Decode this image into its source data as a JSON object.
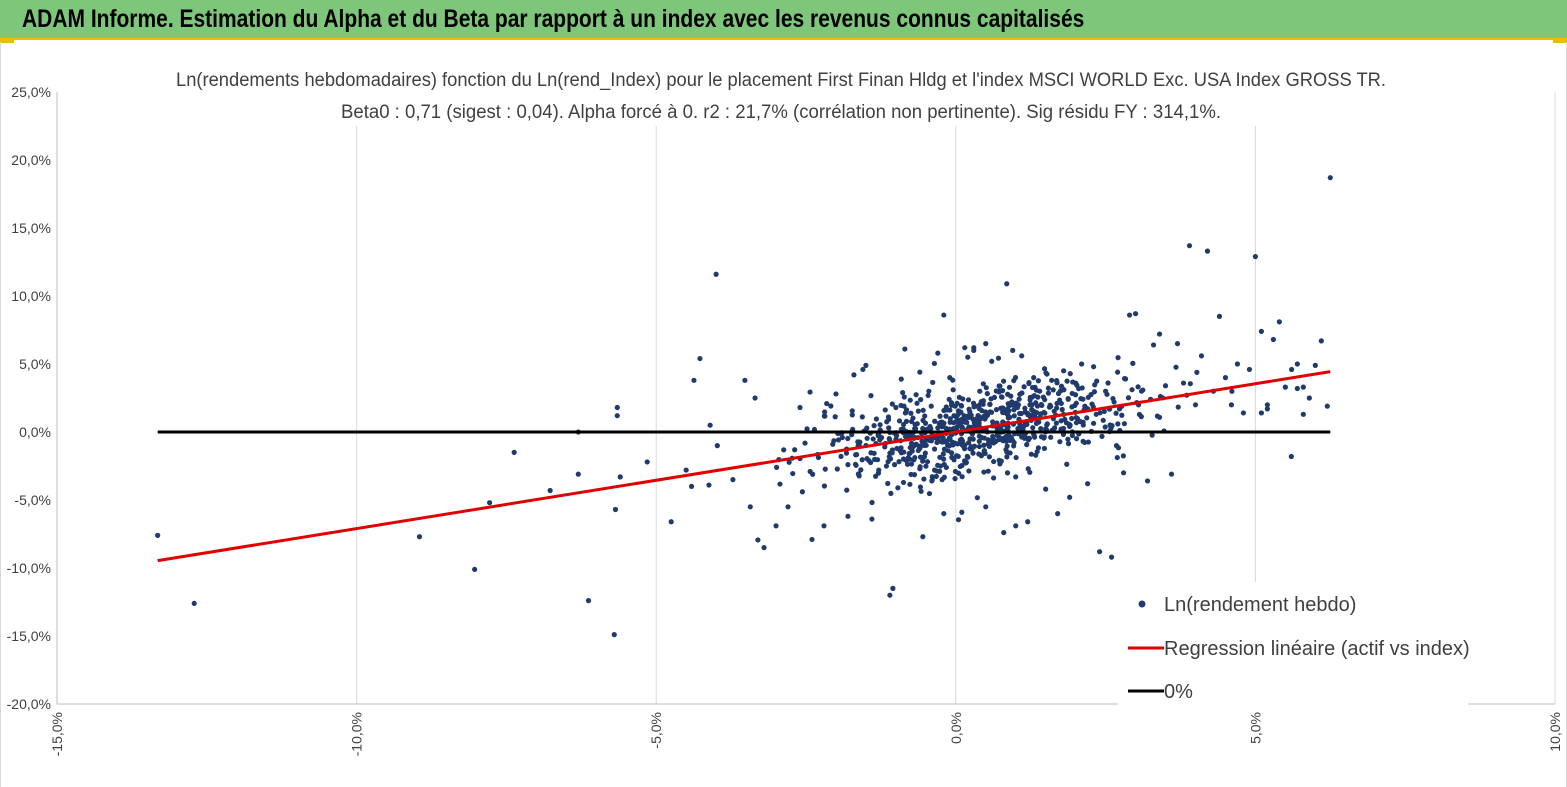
{
  "banner": {
    "title": "ADAM Informe. Estimation du Alpha et du Beta par rapport à un index avec les revenus connus capitalisés"
  },
  "colors": {
    "banner": "#7dc67a",
    "accent_border": "#e6c000",
    "points": "#1f3a6b",
    "regression": "#e00000",
    "zero_line": "#000000",
    "grid": "#d9d9d9"
  },
  "chart_data": {
    "type": "scatter",
    "title_line1": "Ln(rendements hebdomadaires) fonction du Ln(rend_Index) pour le placement First Finan Hldg  et l'index MSCI WORLD Exc. USA Index GROSS TR.",
    "title_line2": "Beta0 : 0,71 (sigest : 0,04).  Alpha forcé à 0. r2 : 21,7% (corrélation non pertinente). Sig résidu FY : 314,1%.",
    "xlabel": "",
    "ylabel": "",
    "xlim": [
      -0.15,
      0.1
    ],
    "ylim": [
      -0.2,
      0.25
    ],
    "x_ticks": [
      {
        "v": -0.15,
        "label": "-15,0%"
      },
      {
        "v": -0.1,
        "label": "-10,0%"
      },
      {
        "v": -0.05,
        "label": "-5,0%"
      },
      {
        "v": 0.0,
        "label": "0,0%"
      },
      {
        "v": 0.05,
        "label": "5,0%"
      },
      {
        "v": 0.1,
        "label": "10,0%"
      }
    ],
    "y_ticks": [
      {
        "v": 0.25,
        "label": "25,0%"
      },
      {
        "v": 0.2,
        "label": "20,0%"
      },
      {
        "v": 0.15,
        "label": "15,0%"
      },
      {
        "v": 0.1,
        "label": "10,0%"
      },
      {
        "v": 0.05,
        "label": "5,0%"
      },
      {
        "v": 0.0,
        "label": "0,0%"
      },
      {
        "v": -0.05,
        "label": "-5,0%"
      },
      {
        "v": -0.1,
        "label": "-10,0%"
      },
      {
        "v": -0.15,
        "label": "-15,0%"
      },
      {
        "v": -0.2,
        "label": "-20,0%"
      }
    ],
    "grid": "vertical",
    "legend_position": "bottom-right",
    "series": [
      {
        "name": "Ln(rendement hebdo)",
        "kind": "scatter",
        "points": [
          [
            -0.1332,
            -0.076
          ],
          [
            -0.1271,
            -0.126
          ],
          [
            -0.0895,
            -0.077
          ],
          [
            -0.0803,
            -0.101
          ],
          [
            -0.0778,
            -0.052
          ],
          [
            -0.0737,
            -0.015
          ],
          [
            -0.0677,
            -0.043
          ],
          [
            -0.063,
            0.0
          ],
          [
            -0.063,
            -0.031
          ],
          [
            -0.0613,
            -0.124
          ],
          [
            -0.0568,
            -0.057
          ],
          [
            -0.0565,
            0.018
          ],
          [
            -0.0565,
            0.012
          ],
          [
            -0.056,
            -0.033
          ],
          [
            -0.057,
            -0.149
          ],
          [
            -0.0515,
            -0.022
          ],
          [
            -0.0475,
            -0.066
          ],
          [
            -0.045,
            -0.028
          ],
          [
            -0.0441,
            -0.04
          ],
          [
            -0.0437,
            0.038
          ],
          [
            -0.0427,
            0.054
          ],
          [
            -0.0412,
            -0.039
          ],
          [
            -0.041,
            0.005
          ],
          [
            -0.04,
            0.116
          ],
          [
            -0.0398,
            -0.01
          ],
          [
            -0.0372,
            -0.035
          ],
          [
            -0.0352,
            0.038
          ],
          [
            -0.0343,
            -0.055
          ],
          [
            -0.0335,
            0.025
          ],
          [
            -0.032,
            -0.085
          ],
          [
            -0.03,
            -0.069
          ],
          [
            -0.028,
            -0.055
          ],
          [
            -0.026,
            0.018
          ],
          [
            -0.024,
            -0.079
          ],
          [
            -0.022,
            -0.069
          ],
          [
            -0.02,
            0.028
          ],
          [
            -0.018,
            -0.062
          ],
          [
            -0.017,
            0.042
          ],
          [
            -0.0155,
            0.046
          ],
          [
            -0.014,
            -0.064
          ],
          [
            -0.011,
            -0.12
          ],
          [
            -0.0105,
            -0.115
          ],
          [
            -0.01,
            0.018
          ],
          [
            -0.0085,
            0.061
          ],
          [
            -0.008,
            -0.002
          ],
          [
            -0.006,
            0.044
          ],
          [
            -0.0045,
            0.03
          ],
          [
            -0.0055,
            -0.077
          ],
          [
            -0.003,
            0.058
          ],
          [
            -0.002,
            -0.06
          ],
          [
            -0.001,
            0.04
          ],
          [
            -0.002,
            0.086
          ],
          [
            0.001,
            -0.059
          ],
          [
            0.002,
            0.055
          ],
          [
            0.003,
            0.062
          ],
          [
            0.004,
            0.03
          ],
          [
            0.005,
            -0.055
          ],
          [
            0.006,
            0.052
          ],
          [
            0.008,
            -0.074
          ],
          [
            0.0095,
            0.06
          ],
          [
            0.01,
            -0.069
          ],
          [
            0.011,
            0.056
          ],
          [
            0.012,
            -0.066
          ],
          [
            0.013,
            0.04
          ],
          [
            0.014,
            0.03
          ],
          [
            0.015,
            -0.042
          ],
          [
            0.016,
            0.038
          ],
          [
            0.017,
            -0.06
          ],
          [
            0.018,
            0.045
          ],
          [
            0.019,
            -0.048
          ],
          [
            0.02,
            0.036
          ],
          [
            0.021,
            0.05
          ],
          [
            0.022,
            -0.038
          ],
          [
            0.023,
            0.048
          ],
          [
            0.024,
            -0.088
          ],
          [
            0.025,
            0.03
          ],
          [
            0.026,
            -0.092
          ],
          [
            0.027,
            0.044
          ],
          [
            0.028,
            -0.03
          ],
          [
            0.029,
            0.086
          ],
          [
            0.03,
            0.087
          ],
          [
            0.031,
            0.03
          ],
          [
            0.032,
            -0.036
          ],
          [
            0.033,
            0.064
          ],
          [
            0.034,
            0.072
          ],
          [
            0.035,
            0.034
          ],
          [
            0.036,
            -0.031
          ],
          [
            0.037,
            0.065
          ],
          [
            0.038,
            0.036
          ],
          [
            0.039,
            0.137
          ],
          [
            0.04,
            0.02
          ],
          [
            0.041,
            0.056
          ],
          [
            0.042,
            0.133
          ],
          [
            0.043,
            0.03
          ],
          [
            0.044,
            0.085
          ],
          [
            0.045,
            0.04
          ],
          [
            0.046,
            0.02
          ],
          [
            0.047,
            0.05
          ],
          [
            0.048,
            0.014
          ],
          [
            0.049,
            0.046
          ],
          [
            0.05,
            0.129
          ],
          [
            0.051,
            0.074
          ],
          [
            0.052,
            0.02
          ],
          [
            0.053,
            0.068
          ],
          [
            0.054,
            0.081
          ],
          [
            0.055,
            0.033
          ],
          [
            0.056,
            -0.018
          ],
          [
            0.057,
            0.05
          ],
          [
            0.058,
            0.013
          ],
          [
            0.059,
            0.025
          ],
          [
            0.06,
            0.049
          ],
          [
            0.061,
            0.067
          ],
          [
            0.062,
            0.019
          ],
          [
            0.051,
            0.014
          ],
          [
            0.052,
            0.017
          ],
          [
            0.057,
            0.032
          ],
          [
            0.058,
            0.033
          ],
          [
            0.0625,
            0.187
          ],
          [
            0.0085,
            0.109
          ],
          [
            -0.015,
            0.049
          ],
          [
            0.0015,
            0.062
          ],
          [
            0.003,
            0.06
          ],
          [
            0.005,
            0.065
          ],
          [
            -0.004,
            -0.036
          ],
          [
            -0.006,
            -0.027
          ],
          [
            0.01,
            -0.033
          ]
        ]
      },
      {
        "name": "Regression linéaire (actif vs index)",
        "kind": "line",
        "beta": 0.71,
        "x_range": [
          -0.1332,
          0.0625
        ]
      },
      {
        "name": "0%",
        "kind": "line",
        "y": 0.0,
        "x_range": [
          -0.1332,
          0.0625
        ]
      }
    ]
  }
}
